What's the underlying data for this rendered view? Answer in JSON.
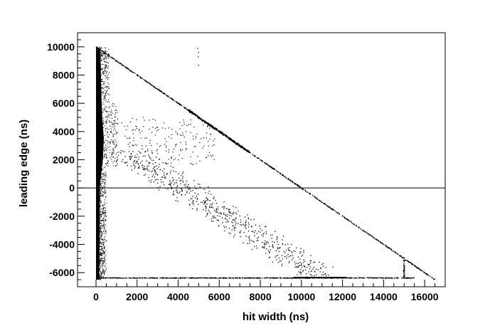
{
  "chart_data": {
    "type": "scatter",
    "title": "",
    "xlabel": "hit width (ns)",
    "ylabel": "leading edge (ns)",
    "xlim": [
      -900,
      17000
    ],
    "ylim": [
      -7000,
      11000
    ],
    "xticks": [
      0,
      2000,
      4000,
      6000,
      8000,
      10000,
      12000,
      14000,
      16000
    ],
    "yticks": [
      -6000,
      -4000,
      -2000,
      0,
      2000,
      4000,
      6000,
      8000,
      10000
    ],
    "xtick_labels": [
      "0",
      "2000",
      "4000",
      "6000",
      "8000",
      "10000",
      "12000",
      "14000",
      "16000"
    ],
    "ytick_labels": [
      "-6000",
      "-4000",
      "-2000",
      "0",
      "2000",
      "4000",
      "6000",
      "8000",
      "10000"
    ],
    "reference_line_y": 0,
    "marker_color": "#000000",
    "features": {
      "dense_band": {
        "x_range": [
          0,
          450
        ],
        "y_range": [
          -6500,
          10000
        ],
        "description_points": [
          [
            0,
            10000
          ],
          [
            200,
            9800
          ],
          [
            250,
            3500
          ],
          [
            150,
            -6500
          ]
        ]
      },
      "upper_diagonal": {
        "points": [
          [
            0,
            10000
          ],
          [
            16500,
            -6500
          ]
        ]
      },
      "lower_diagonal": {
        "points": [
          [
            1500,
            2500
          ],
          [
            11000,
            -6300
          ]
        ]
      },
      "bottom_band": {
        "y": -6350,
        "x_range": [
          0,
          12200
        ]
      },
      "vertical_spike": {
        "x": 15000,
        "y_range": [
          -6400,
          -5000
        ]
      }
    }
  }
}
